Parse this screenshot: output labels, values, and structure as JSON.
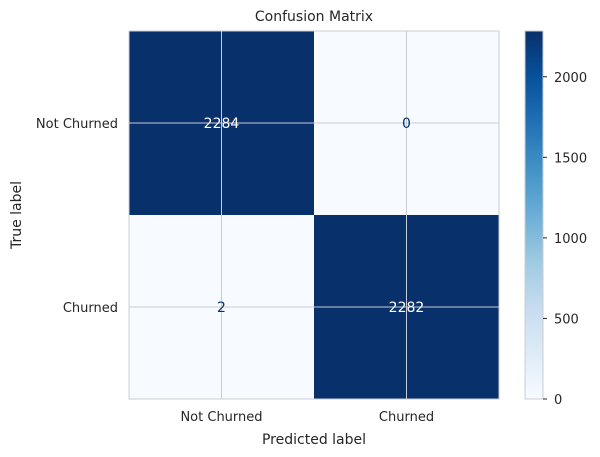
{
  "chart_data": {
    "type": "heatmap",
    "title": "Confusion Matrix",
    "xlabel": "Predicted label",
    "ylabel": "True label",
    "x_categories": [
      "Not Churned",
      "Churned"
    ],
    "y_categories": [
      "Not Churned",
      "Churned"
    ],
    "values": [
      [
        2284,
        0
      ],
      [
        2,
        2282
      ]
    ],
    "colormap": "Blues",
    "colorbar": {
      "min": 0,
      "max": 2284,
      "ticks": [
        "0",
        "500",
        "1000",
        "1500",
        "2000"
      ]
    },
    "grid": true,
    "colors": {
      "dark": "#08306b",
      "light": "#f7fbff",
      "gridline": "#c8ccd4",
      "text_dark_cell": "#ffffff",
      "text_light_cell": "#08306b"
    }
  }
}
